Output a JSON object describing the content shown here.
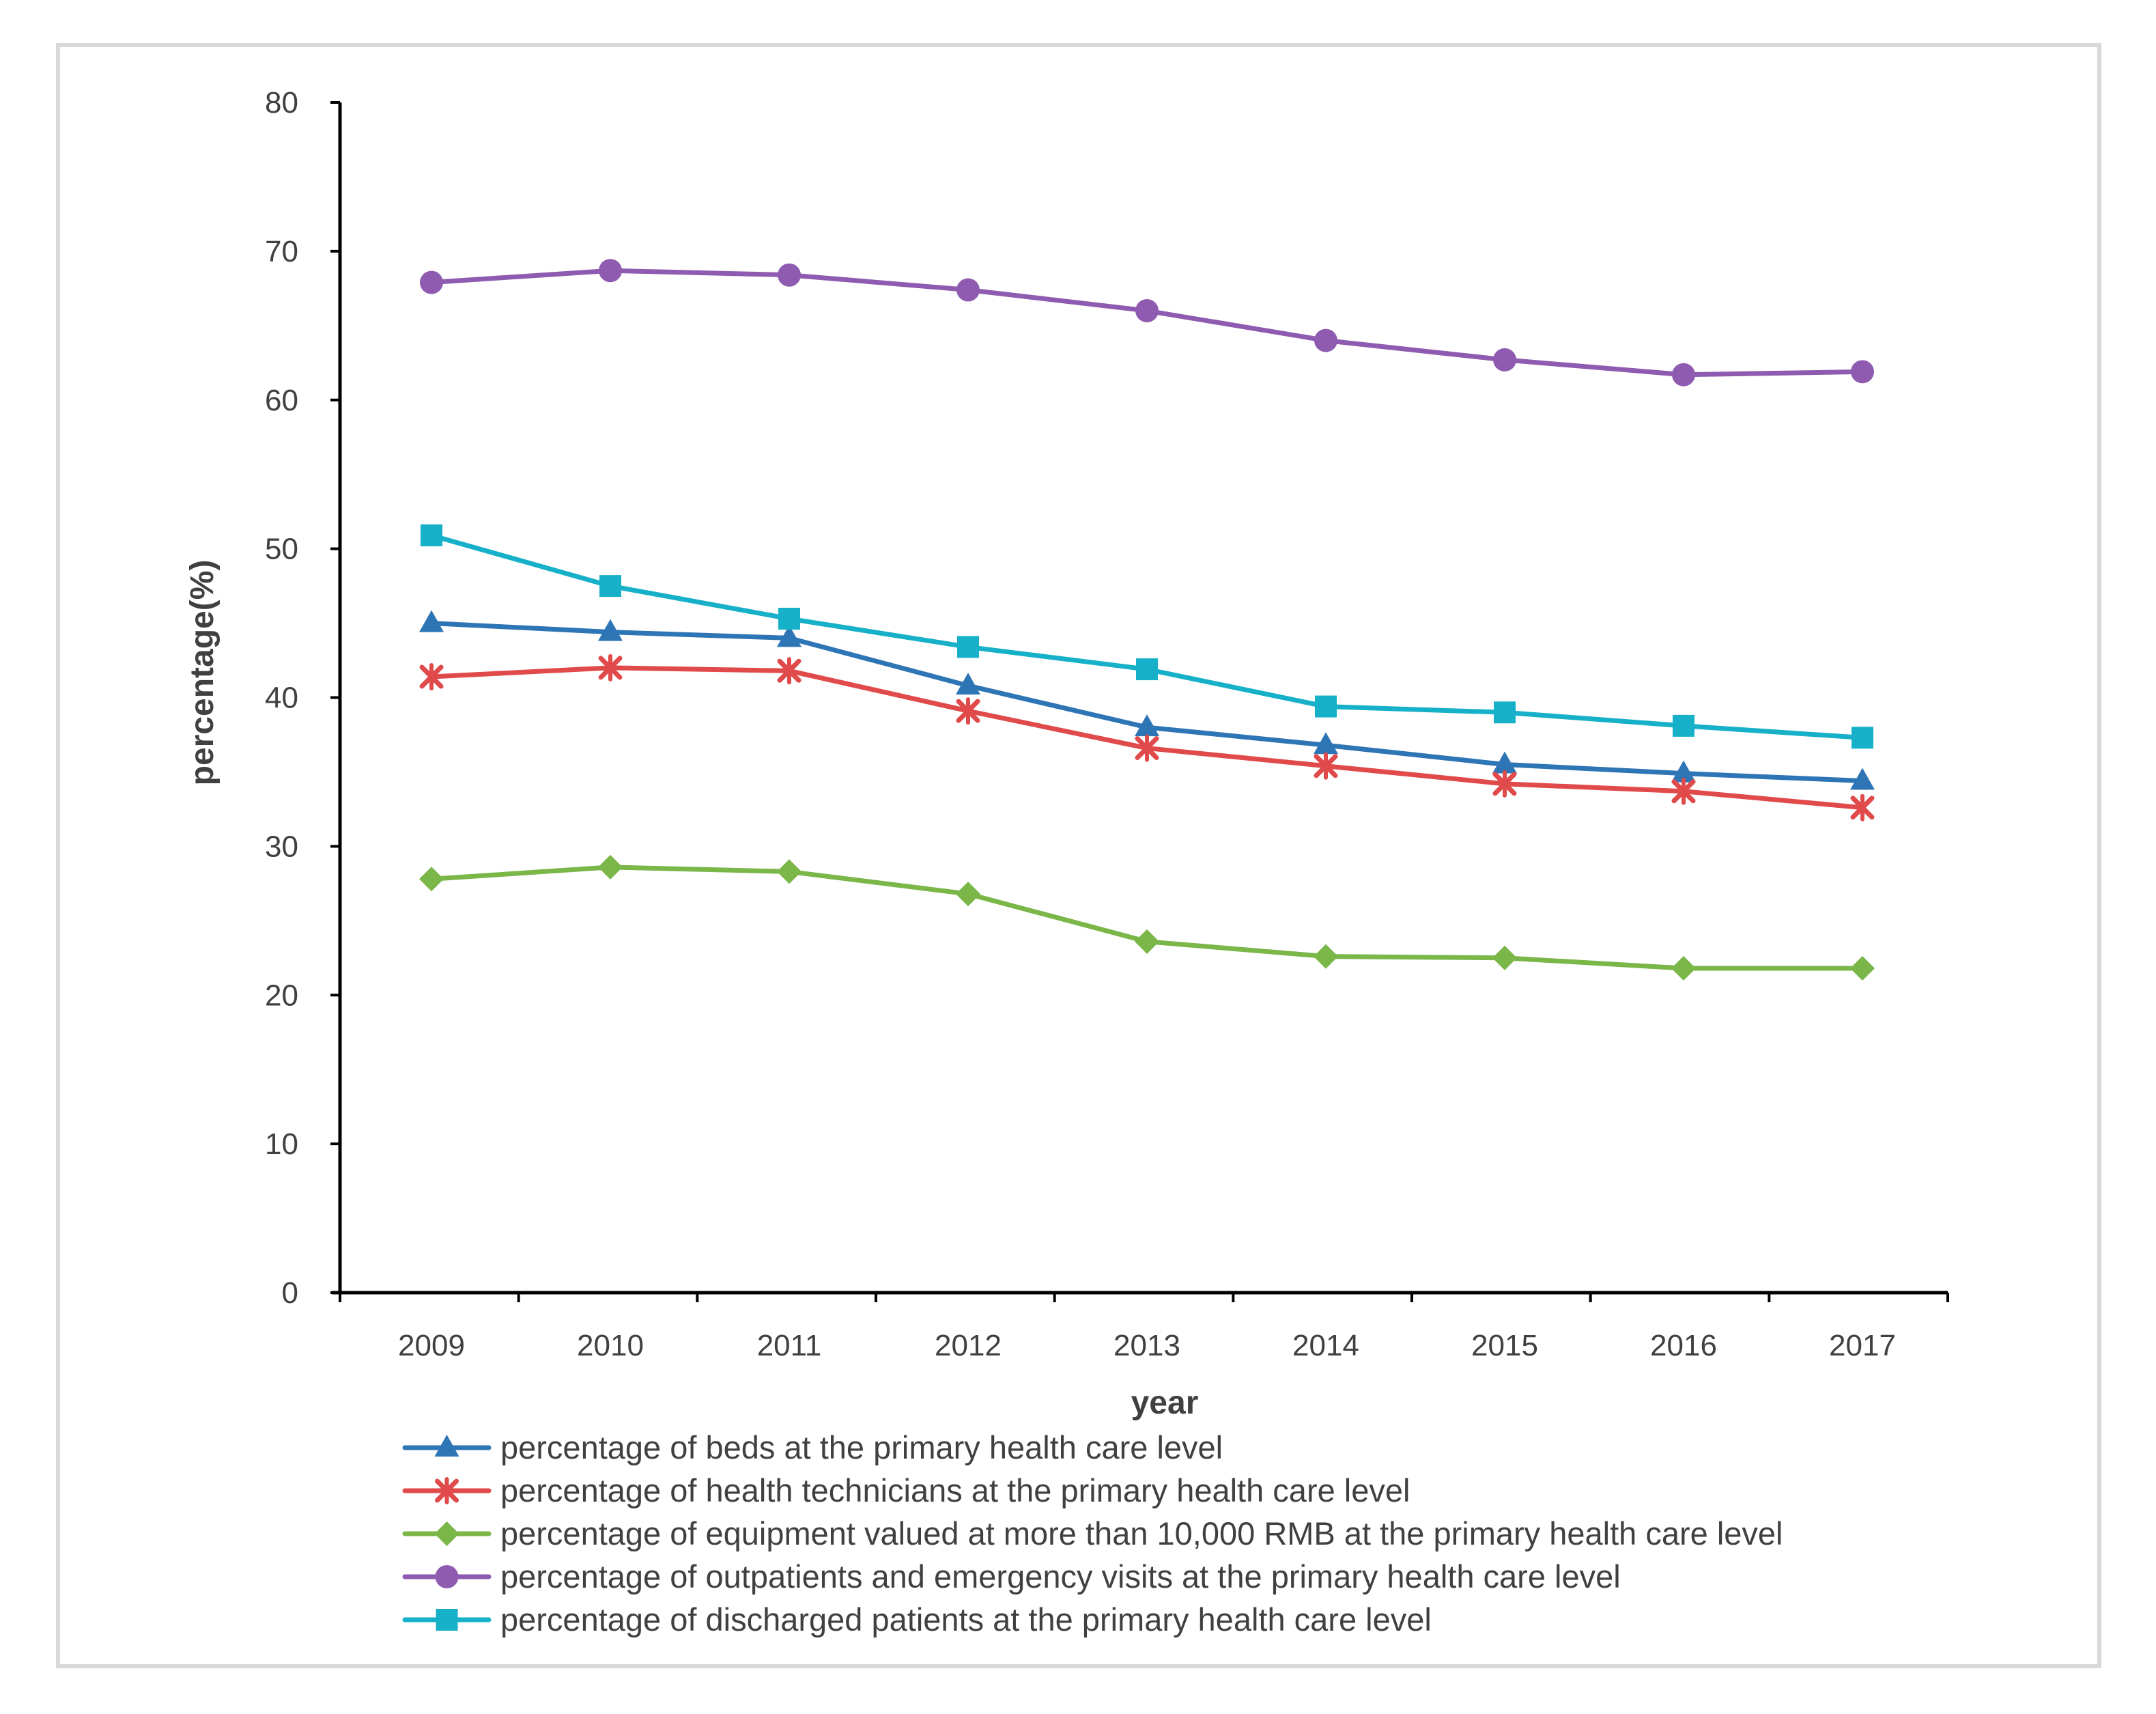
{
  "chart_data": {
    "type": "line",
    "title": "",
    "xlabel": "year",
    "ylabel": "percentage(%)",
    "ylim": [
      0,
      80
    ],
    "yticks": [
      0,
      10,
      20,
      30,
      40,
      50,
      60,
      70,
      80
    ],
    "grid": false,
    "legend_position": "bottom",
    "categories": [
      "2009",
      "2010",
      "2011",
      "2012",
      "2013",
      "2014",
      "2015",
      "2016",
      "2017"
    ],
    "series": [
      {
        "name": "percentage of beds at the primary health care level",
        "color": "#2e75b6",
        "marker": "triangle",
        "values": [
          45.0,
          44.4,
          44.0,
          40.8,
          38.0,
          36.8,
          35.5,
          34.9,
          34.4
        ]
      },
      {
        "name": "percentage of health technicians at the primary health care level",
        "color": "#e04a4a",
        "marker": "star",
        "values": [
          41.4,
          42.0,
          41.8,
          39.1,
          36.6,
          35.4,
          34.2,
          33.7,
          32.6
        ]
      },
      {
        "name": "percentage of equipment valued at more than 10,000 RMB at the primary health care level",
        "color": "#7ab648",
        "marker": "diamond",
        "values": [
          27.8,
          28.6,
          28.3,
          26.8,
          23.6,
          22.6,
          22.5,
          21.8,
          21.8
        ]
      },
      {
        "name": "percentage of outpatients and emergency visits at the primary health care level",
        "color": "#8e5bb0",
        "marker": "circle",
        "values": [
          67.9,
          68.7,
          68.4,
          67.4,
          66.0,
          64.0,
          62.7,
          61.7,
          61.9
        ]
      },
      {
        "name": "percentage of discharged patients at the primary health care level",
        "color": "#17b0c9",
        "marker": "square",
        "values": [
          50.9,
          47.5,
          45.3,
          43.4,
          41.9,
          39.4,
          39.0,
          38.1,
          37.3
        ]
      }
    ]
  }
}
